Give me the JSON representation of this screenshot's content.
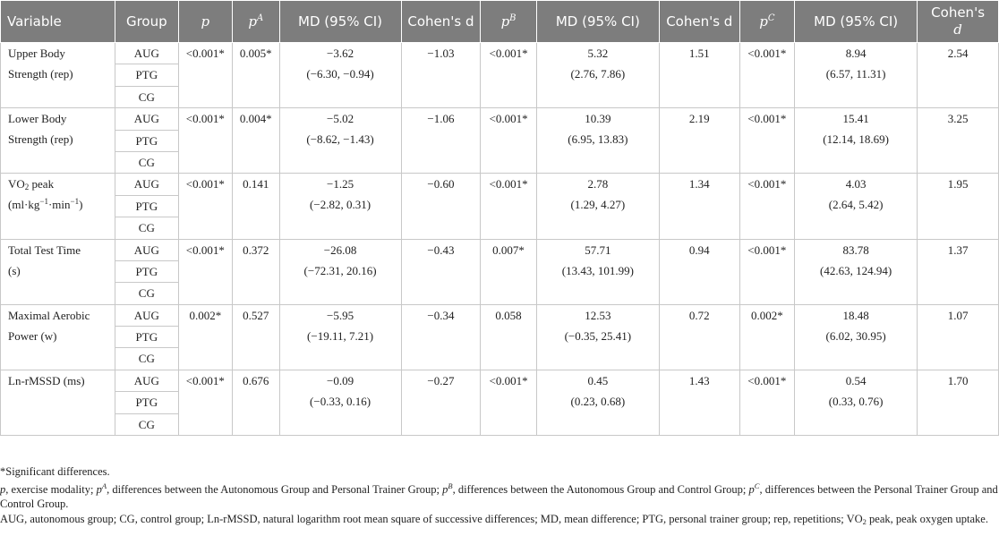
{
  "header": {
    "variable": "Variable",
    "group": "Group",
    "p": "p",
    "pA_base": "p",
    "pA_sup": "A",
    "md_a": "MD (95% CI)",
    "d_a": "Cohen's d",
    "pB_base": "p",
    "pB_sup": "B",
    "md_b": "MD (95% CI)",
    "d_b": "Cohen's d",
    "pC_base": "p",
    "pC_sup": "C",
    "md_c": "MD (95% CI)",
    "d_c_main": "Cohen's",
    "d_c_italic": "d"
  },
  "rows": [
    {
      "variable_l1": "Upper Body",
      "variable_l2": "Strength (rep)",
      "groups": [
        "AUG",
        "PTG",
        "CG"
      ],
      "p": "<0.001*",
      "pA": "0.005*",
      "mdA": "−3.62",
      "ciA": "(−6.30, −0.94)",
      "dA": "−1.03",
      "pB": "<0.001*",
      "mdB": "5.32",
      "ciB": "(2.76, 7.86)",
      "dB": "1.51",
      "pC": "<0.001*",
      "mdC": "8.94",
      "ciC": "(6.57, 11.31)",
      "dC": "2.54"
    },
    {
      "variable_l1": "Lower Body",
      "variable_l2": "Strength (rep)",
      "groups": [
        "AUG",
        "PTG",
        "CG"
      ],
      "p": "<0.001*",
      "pA": "0.004*",
      "mdA": "−5.02",
      "ciA": "(−8.62, −1.43)",
      "dA": "−1.06",
      "pB": "<0.001*",
      "mdB": "10.39",
      "ciB": "(6.95, 13.83)",
      "dB": "2.19",
      "pC": "<0.001*",
      "mdC": "15.41",
      "ciC": "(12.14, 18.69)",
      "dC": "3.25"
    },
    {
      "variable_l1_base": "VO",
      "variable_l1_sub": "2",
      "variable_l1_rest": " peak",
      "variable_l2_a": "(ml·kg",
      "variable_l2_sup1": "−1",
      "variable_l2_b": "·min",
      "variable_l2_sup2": "−1",
      "variable_l2_c": ")",
      "groups": [
        "AUG",
        "PTG",
        "CG"
      ],
      "p": "<0.001*",
      "pA": "0.141",
      "mdA": "−1.25",
      "ciA": "(−2.82, 0.31)",
      "dA": "−0.60",
      "pB": "<0.001*",
      "mdB": "2.78",
      "ciB": "(1.29, 4.27)",
      "dB": "1.34",
      "pC": "<0.001*",
      "mdC": "4.03",
      "ciC": "(2.64, 5.42)",
      "dC": "1.95"
    },
    {
      "variable_l1": "Total Test Time",
      "variable_l2": "(s)",
      "groups": [
        "AUG",
        "PTG",
        "CG"
      ],
      "p": "<0.001*",
      "pA": "0.372",
      "mdA": "−26.08",
      "ciA": "(−72.31, 20.16)",
      "dA": "−0.43",
      "pB": "0.007*",
      "mdB": "57.71",
      "ciB": "(13.43, 101.99)",
      "dB": "0.94",
      "pC": "<0.001*",
      "mdC": "83.78",
      "ciC": "(42.63, 124.94)",
      "dC": "1.37"
    },
    {
      "variable_l1": "Maximal Aerobic",
      "variable_l2": "Power (w)",
      "groups": [
        "AUG",
        "PTG",
        "CG"
      ],
      "p": "0.002*",
      "pA": "0.527",
      "mdA": "−5.95",
      "ciA": "(−19.11, 7.21)",
      "dA": "−0.34",
      "pB": "0.058",
      "mdB": "12.53",
      "ciB": "(−0.35, 25.41)",
      "dB": "0.72",
      "pC": "0.002*",
      "mdC": "18.48",
      "ciC": "(6.02, 30.95)",
      "dC": "1.07"
    },
    {
      "variable_l1": "Ln-rMSSD (ms)",
      "variable_l2": "",
      "groups": [
        "AUG",
        "PTG",
        "CG"
      ],
      "p": "<0.001*",
      "pA": "0.676",
      "mdA": "−0.09",
      "ciA": "(−0.33, 0.16)",
      "dA": "−0.27",
      "pB": "<0.001*",
      "mdB": "0.45",
      "ciB": "(0.23, 0.68)",
      "dB": "1.43",
      "pC": "<0.001*",
      "mdC": "0.54",
      "ciC": "(0.33, 0.76)",
      "dC": "1.70"
    }
  ],
  "notes": {
    "significant": "*Significant differences.",
    "p_def": ", exercise modality; ",
    "pA_def": ", differences between the Autonomous Group and Personal Trainer Group; ",
    "pB_def": ", differences between the Autonomous Group and Control Group; ",
    "pC_def": ", differences between the Personal Trainer Group and Control Group.",
    "abbr_1": "AUG, autonomous group; CG, control group; Ln-rMSSD, natural logarithm root mean square of successive differences; MD, mean difference; PTG, personal trainer group; rep, repetitions; VO",
    "abbr_sub": "2",
    "abbr_2": " peak, peak oxygen uptake."
  }
}
